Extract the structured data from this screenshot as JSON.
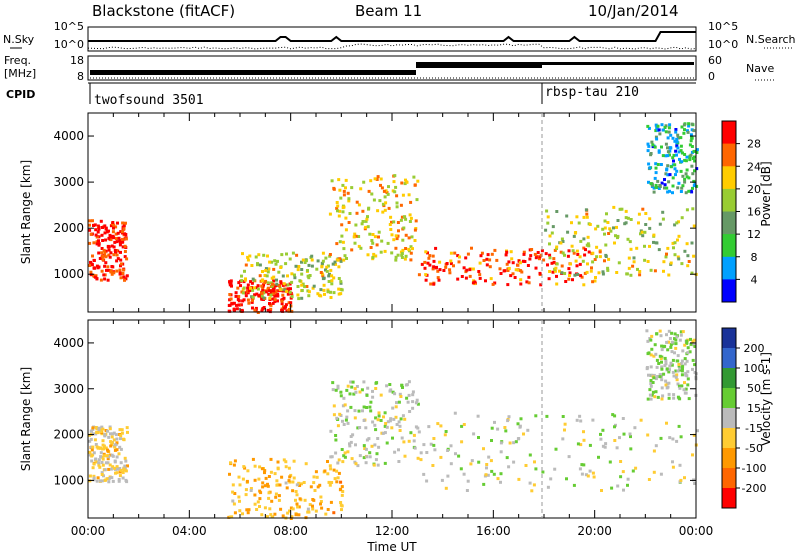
{
  "header": {
    "station": "Blackstone (fitACF)",
    "beam": "Beam 11",
    "date": "10/Jan/2014"
  },
  "summary": {
    "nsky_label": "N.Sky",
    "nsearch_label": "N.Search",
    "freq_label_1": "Freq.",
    "freq_label_2": "[MHz]",
    "nave_label": "Nave",
    "cpid_label": "CPID",
    "noise_ticks": [
      "10^5",
      "10^0"
    ],
    "freq_ticks": [
      "18",
      "8"
    ],
    "nave_ticks": [
      "60",
      "0"
    ],
    "cpid_programs": [
      {
        "name": "twofsound 3501",
        "start_hour": 0
      },
      {
        "name": "rbsp-tau 210",
        "start_hour": 18
      }
    ]
  },
  "colors": {
    "power_scale": [
      "#0000ff",
      "#00a0ff",
      "#33cc33",
      "#669966",
      "#99cc33",
      "#ffcc00",
      "#ff6600",
      "#ff0000"
    ],
    "velocity_scale": [
      "#1a3399",
      "#3366cc",
      "#339933",
      "#66cc33",
      "#bbbbbb",
      "#ffcc33",
      "#ff9900",
      "#ff6600",
      "#ff0000"
    ]
  },
  "chart_data": [
    {
      "type": "heatmap",
      "name": "power",
      "xlabel": "",
      "ylabel": "Slant Range [km]",
      "xlim": [
        0,
        24
      ],
      "ylim": [
        180,
        4500
      ],
      "yticks": [
        "1000",
        "2000",
        "3000",
        "4000"
      ],
      "colorbar": {
        "label": "Power [dB]",
        "ticks": [
          "4",
          "8",
          "12",
          "16",
          "20",
          "24",
          "28"
        ],
        "range": [
          0,
          30
        ]
      },
      "features": [
        {
          "hours": [
            0,
            1.5
          ],
          "range_km": [
            900,
            2200
          ],
          "level_db": 28
        },
        {
          "hours": [
            5.5,
            8.0
          ],
          "range_km": [
            200,
            900
          ],
          "level_db": 28
        },
        {
          "hours": [
            6.0,
            10.0
          ],
          "range_km": [
            500,
            1500
          ],
          "level_db": 18
        },
        {
          "hours": [
            9.5,
            13.0
          ],
          "range_km": [
            1300,
            3200
          ],
          "level_db": 20
        },
        {
          "hours": [
            13,
            20
          ],
          "range_km": [
            800,
            1600
          ],
          "level_db": 26
        },
        {
          "hours": [
            18,
            24
          ],
          "range_km": [
            1000,
            2500
          ],
          "level_db": 18
        },
        {
          "hours": [
            22,
            24
          ],
          "range_km": [
            2800,
            4300
          ],
          "level_db": 8
        }
      ]
    },
    {
      "type": "heatmap",
      "name": "velocity",
      "xlabel": "Time UT",
      "ylabel": "Slant Range [km]",
      "xlim": [
        0,
        24
      ],
      "ylim": [
        180,
        4500
      ],
      "xticks": [
        "00:00",
        "04:00",
        "08:00",
        "12:00",
        "16:00",
        "20:00",
        "00:00"
      ],
      "yticks": [
        "1000",
        "2000",
        "3000",
        "4000"
      ],
      "colorbar": {
        "label": "Velocity [m s-1]",
        "ticks": [
          "200",
          "100",
          "50",
          "15",
          "-15",
          "-50",
          "-100",
          "-200"
        ],
        "range": [
          -250,
          250
        ]
      },
      "features": [
        {
          "hours": [
            0,
            1.5
          ],
          "range_km": [
            1000,
            2200
          ],
          "velocity": -40
        },
        {
          "hours": [
            5.5,
            10.0
          ],
          "range_km": [
            200,
            1500
          ],
          "velocity": -80
        },
        {
          "hours": [
            9.5,
            13.0
          ],
          "range_km": [
            1300,
            3200
          ],
          "velocity": 0
        },
        {
          "hours": [
            13,
            24
          ],
          "range_km": [
            800,
            2500
          ],
          "velocity": 0
        },
        {
          "hours": [
            22,
            24
          ],
          "range_km": [
            2800,
            4300
          ],
          "velocity": 20
        }
      ]
    }
  ]
}
